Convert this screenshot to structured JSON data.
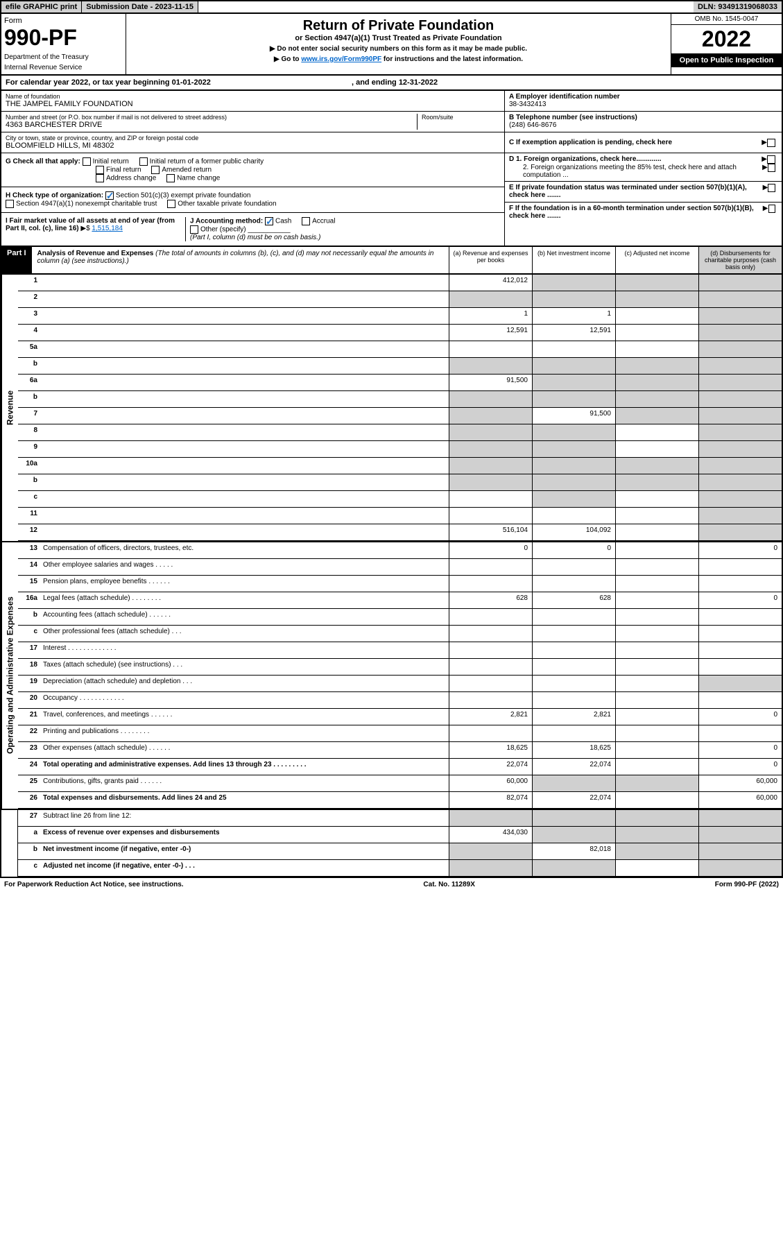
{
  "header": {
    "efile": "efile GRAPHIC print",
    "sub_date_label": "Submission Date - 2023-11-15",
    "dln": "DLN: 93491319068033"
  },
  "form": {
    "form_label": "Form",
    "number": "990-PF",
    "dept": "Department of the Treasury",
    "irs": "Internal Revenue Service",
    "title": "Return of Private Foundation",
    "subtitle": "or Section 4947(a)(1) Trust Treated as Private Foundation",
    "instr1": "▶ Do not enter social security numbers on this form as it may be made public.",
    "instr2_pre": "▶ Go to ",
    "instr2_link": "www.irs.gov/Form990PF",
    "instr2_post": " for instructions and the latest information.",
    "omb": "OMB No. 1545-0047",
    "year": "2022",
    "inspect": "Open to Public Inspection"
  },
  "cal_year": "For calendar year 2022, or tax year beginning 01-01-2022",
  "cal_year_end": ", and ending 12-31-2022",
  "entity": {
    "name_label": "Name of foundation",
    "name": "THE JAMPEL FAMILY FOUNDATION",
    "addr_label": "Number and street (or P.O. box number if mail is not delivered to street address)",
    "addr": "4363 BARCHESTER DRIVE",
    "room_label": "Room/suite",
    "city_label": "City or town, state or province, country, and ZIP or foreign postal code",
    "city": "BLOOMFIELD HILLS, MI  48302",
    "ein_label": "A Employer identification number",
    "ein": "38-3432413",
    "tel_label": "B Telephone number (see instructions)",
    "tel": "(248) 646-8676",
    "c_label": "C If exemption application is pending, check here",
    "d1": "D 1. Foreign organizations, check here.............",
    "d2": "2. Foreign organizations meeting the 85% test, check here and attach computation ...",
    "e": "E If private foundation status was terminated under section 507(b)(1)(A), check here .......",
    "f": "F If the foundation is in a 60-month termination under section 507(b)(1)(B), check here .......",
    "g_label": "G Check all that apply:",
    "g_opts": [
      "Initial return",
      "Initial return of a former public charity",
      "Final return",
      "Amended return",
      "Address change",
      "Name change"
    ],
    "h_label": "H Check type of organization:",
    "h1": "Section 501(c)(3) exempt private foundation",
    "h2": "Section 4947(a)(1) nonexempt charitable trust",
    "h3": "Other taxable private foundation",
    "i_label": "I Fair market value of all assets at end of year (from Part II, col. (c), line 16)",
    "i_val": "1,515,184",
    "j_label": "J Accounting method:",
    "j_cash": "Cash",
    "j_accrual": "Accrual",
    "j_other": "Other (specify)",
    "j_note": "(Part I, column (d) must be on cash basis.)"
  },
  "part1": {
    "label": "Part I",
    "title": "Analysis of Revenue and Expenses",
    "note": "(The total of amounts in columns (b), (c), and (d) may not necessarily equal the amounts in column (a) (see instructions).)",
    "col_a": "(a) Revenue and expenses per books",
    "col_b": "(b) Net investment income",
    "col_c": "(c) Adjusted net income",
    "col_d": "(d) Disbursements for charitable purposes (cash basis only)"
  },
  "sections": {
    "revenue": "Revenue",
    "expenses": "Operating and Administrative Expenses"
  },
  "lines": [
    {
      "n": "1",
      "d": "",
      "a": "412,012",
      "b": "",
      "c": "",
      "sb": true,
      "sc": true,
      "sd": true
    },
    {
      "n": "2",
      "d": "",
      "a": "",
      "b": "",
      "c": "",
      "sa": true,
      "sb": true,
      "sc": true,
      "sd": true
    },
    {
      "n": "3",
      "d": "",
      "a": "1",
      "b": "1",
      "c": "",
      "sd": true
    },
    {
      "n": "4",
      "d": "",
      "a": "12,591",
      "b": "12,591",
      "c": "",
      "sd": true
    },
    {
      "n": "5a",
      "d": "",
      "a": "",
      "b": "",
      "c": "",
      "sd": true
    },
    {
      "n": "b",
      "d": "",
      "a": "",
      "b": "",
      "c": "",
      "sa": true,
      "sb": true,
      "sc": true,
      "sd": true
    },
    {
      "n": "6a",
      "d": "",
      "a": "91,500",
      "b": "",
      "c": "",
      "sb": true,
      "sc": true,
      "sd": true
    },
    {
      "n": "b",
      "d": "",
      "a": "",
      "b": "",
      "c": "",
      "sa": true,
      "sb": true,
      "sc": true,
      "sd": true
    },
    {
      "n": "7",
      "d": "",
      "a": "",
      "b": "91,500",
      "c": "",
      "sa": true,
      "sc": true,
      "sd": true
    },
    {
      "n": "8",
      "d": "",
      "a": "",
      "b": "",
      "c": "",
      "sa": true,
      "sb": true,
      "sd": true
    },
    {
      "n": "9",
      "d": "",
      "a": "",
      "b": "",
      "c": "",
      "sa": true,
      "sb": true,
      "sd": true
    },
    {
      "n": "10a",
      "d": "",
      "a": "",
      "b": "",
      "c": "",
      "sa": true,
      "sb": true,
      "sc": true,
      "sd": true
    },
    {
      "n": "b",
      "d": "",
      "a": "",
      "b": "",
      "c": "",
      "sa": true,
      "sb": true,
      "sc": true,
      "sd": true
    },
    {
      "n": "c",
      "d": "",
      "a": "",
      "b": "",
      "c": "",
      "sb": true,
      "sd": true
    },
    {
      "n": "11",
      "d": "",
      "a": "",
      "b": "",
      "c": "",
      "sd": true
    },
    {
      "n": "12",
      "d": "",
      "a": "516,104",
      "b": "104,092",
      "c": "",
      "bold": true,
      "sd": true
    }
  ],
  "exp_lines": [
    {
      "n": "13",
      "d": "0",
      "a": "0",
      "b": "0",
      "c": ""
    },
    {
      "n": "14",
      "d": "",
      "a": "",
      "b": "",
      "c": ""
    },
    {
      "n": "15",
      "d": "",
      "a": "",
      "b": "",
      "c": ""
    },
    {
      "n": "16a",
      "d": "0",
      "a": "628",
      "b": "628",
      "c": ""
    },
    {
      "n": "b",
      "d": "",
      "a": "",
      "b": "",
      "c": ""
    },
    {
      "n": "c",
      "d": "",
      "a": "",
      "b": "",
      "c": ""
    },
    {
      "n": "17",
      "d": "",
      "a": "",
      "b": "",
      "c": ""
    },
    {
      "n": "18",
      "d": "",
      "a": "",
      "b": "",
      "c": ""
    },
    {
      "n": "19",
      "d": "",
      "a": "",
      "b": "",
      "c": "",
      "sd": true
    },
    {
      "n": "20",
      "d": "",
      "a": "",
      "b": "",
      "c": ""
    },
    {
      "n": "21",
      "d": "0",
      "a": "2,821",
      "b": "2,821",
      "c": ""
    },
    {
      "n": "22",
      "d": "",
      "a": "",
      "b": "",
      "c": ""
    },
    {
      "n": "23",
      "d": "0",
      "a": "18,625",
      "b": "18,625",
      "c": ""
    },
    {
      "n": "24",
      "d": "0",
      "a": "22,074",
      "b": "22,074",
      "c": "",
      "bold": true
    },
    {
      "n": "25",
      "d": "60,000",
      "a": "60,000",
      "b": "",
      "c": "",
      "sb": true,
      "sc": true
    },
    {
      "n": "26",
      "d": "60,000",
      "a": "82,074",
      "b": "22,074",
      "c": "",
      "bold": true
    }
  ],
  "sub_lines": [
    {
      "n": "27",
      "d": "",
      "a": "",
      "b": "",
      "c": "",
      "sa": true,
      "sb": true,
      "sc": true,
      "sd": true
    },
    {
      "n": "a",
      "d": "",
      "a": "434,030",
      "b": "",
      "c": "",
      "bold": true,
      "sb": true,
      "sc": true,
      "sd": true
    },
    {
      "n": "b",
      "d": "",
      "a": "",
      "b": "82,018",
      "c": "",
      "bold": true,
      "sa": true,
      "sc": true,
      "sd": true
    },
    {
      "n": "c",
      "d": "",
      "a": "",
      "b": "",
      "c": "",
      "bold": true,
      "sa": true,
      "sb": true,
      "sd": true
    }
  ],
  "footer": {
    "left": "For Paperwork Reduction Act Notice, see instructions.",
    "mid": "Cat. No. 11289X",
    "right": "Form 990-PF (2022)"
  }
}
